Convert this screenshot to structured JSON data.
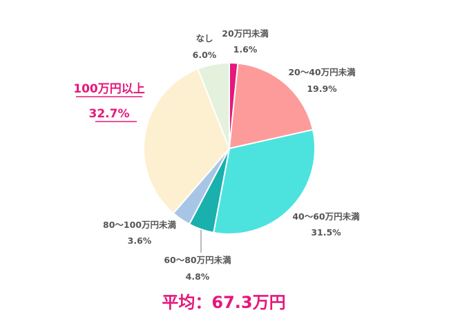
{
  "chart_data": {
    "type": "pie",
    "slices": [
      {
        "label": "20万円未満",
        "value": 1.6,
        "value_label": "1.6%",
        "color": "#e5187c"
      },
      {
        "label": "20～40万円未満",
        "value": 19.9,
        "value_label": "19.9%",
        "color": "#fd9b9b"
      },
      {
        "label": "40～60万円未満",
        "value": 31.5,
        "value_label": "31.5%",
        "color": "#4ce3df"
      },
      {
        "label": "60～80万円未満",
        "value": 4.8,
        "value_label": "4.8%",
        "color": "#19b0ad"
      },
      {
        "label": "80～100万円未満",
        "value": 3.6,
        "value_label": "3.6%",
        "color": "#a7c6e6"
      },
      {
        "label": "100万円以上",
        "value": 32.7,
        "value_label": "32.7%",
        "color": "#fdf0d0"
      },
      {
        "label": "なし",
        "value": 6.0,
        "value_label": "6.0%",
        "color": "#e3f1dd"
      }
    ],
    "start": "12 o'clock",
    "direction": "clockwise",
    "highlighted": "100万円以上",
    "label_colors": {
      "default": "#555555",
      "highlight": "#e5187c"
    }
  },
  "summary": {
    "average": "平均：67.3万円"
  }
}
